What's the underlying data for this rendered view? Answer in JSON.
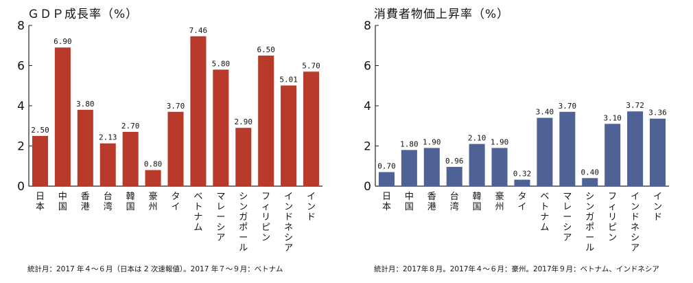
{
  "chart_data": [
    {
      "type": "bar",
      "title": "ＧＤＰ成長率（%）",
      "categories": [
        "日本",
        "中国",
        "香港",
        "台湾",
        "韓国",
        "豪州",
        "タイ",
        "ベトナム",
        "マレーシア",
        "シンガポール",
        "フィリピン",
        "インドネシア",
        "インド"
      ],
      "values": [
        2.5,
        6.9,
        3.8,
        2.13,
        2.7,
        0.8,
        3.7,
        7.46,
        5.8,
        2.9,
        6.5,
        5.01,
        5.7
      ],
      "value_labels": [
        "2.50",
        "6.90",
        "3.80",
        "2.13",
        "2.70",
        "0.80",
        "3.70",
        "7.46",
        "5.80",
        "2.90",
        "6.50",
        "5.01",
        "5.70"
      ],
      "ylim": [
        0,
        8
      ],
      "yticks": [
        0,
        2,
        4,
        6,
        8
      ],
      "xlabel": "",
      "ylabel": "",
      "bar_color": "#B83A2A",
      "grid": false,
      "note": "統計月：2017 年４～６月（日本は 2 次速報値）。2017 年７～９月：ベトナム"
    },
    {
      "type": "bar",
      "title": "消費者物価上昇率（%）",
      "categories": [
        "日本",
        "中国",
        "香港",
        "台湾",
        "韓国",
        "豪州",
        "タイ",
        "ベトナム",
        "マレーシア",
        "シンガポール",
        "フィリピン",
        "インドネシア",
        "インド"
      ],
      "values": [
        0.7,
        1.8,
        1.9,
        0.96,
        2.1,
        1.9,
        0.32,
        3.4,
        3.7,
        0.4,
        3.1,
        3.72,
        3.36
      ],
      "value_labels": [
        "0.70",
        "1.80",
        "1.90",
        "0.96",
        "2.10",
        "1.90",
        "0.32",
        "3.40",
        "3.70",
        "0.40",
        "3.10",
        "3.72",
        "3.36"
      ],
      "ylim": [
        0,
        8
      ],
      "yticks": [
        0,
        2,
        4,
        6,
        8
      ],
      "xlabel": "",
      "ylabel": "",
      "bar_color": "#4F6296",
      "grid": false,
      "note": "統計月：2017年８月。2017年４～６月：豪州。2017年９月：ベトナム、インドネシア"
    }
  ]
}
